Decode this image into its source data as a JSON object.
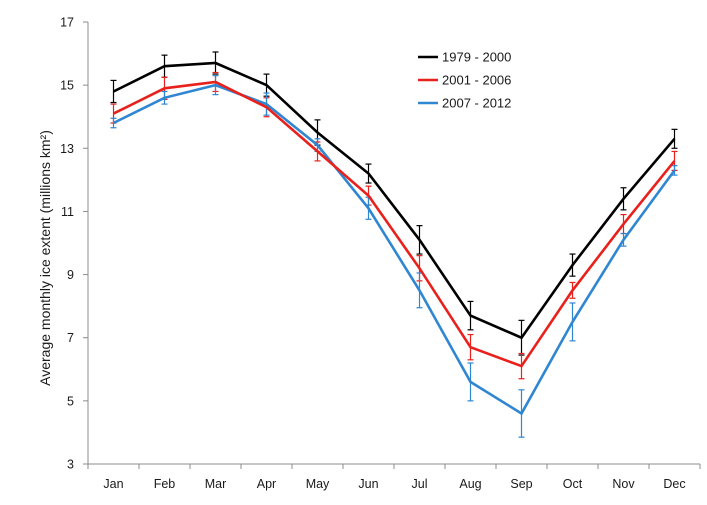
{
  "chart_data": {
    "type": "line",
    "title": "",
    "xlabel": "",
    "ylabel": "Average monthly ice extent (millions km²)",
    "categories": [
      "Jan",
      "Feb",
      "Mar",
      "Apr",
      "May",
      "Jun",
      "Jul",
      "Aug",
      "Sep",
      "Oct",
      "Nov",
      "Dec"
    ],
    "ylim": [
      3,
      17
    ],
    "yticks": [
      3,
      5,
      7,
      9,
      11,
      13,
      15,
      17
    ],
    "grid": false,
    "legend_position": "top-right",
    "series": [
      {
        "name": "1979 - 2000",
        "color": "#000000",
        "values": [
          14.8,
          15.6,
          15.7,
          15.0,
          13.5,
          12.2,
          10.1,
          7.7,
          7.0,
          9.3,
          11.4,
          13.3
        ],
        "error": [
          0.35,
          0.35,
          0.35,
          0.35,
          0.4,
          0.3,
          0.45,
          0.45,
          0.55,
          0.35,
          0.35,
          0.3
        ]
      },
      {
        "name": "2001 - 2006",
        "color": "#e8211c",
        "values": [
          14.1,
          14.9,
          15.1,
          14.3,
          12.9,
          11.5,
          9.2,
          6.7,
          6.1,
          8.5,
          10.6,
          12.6
        ],
        "error": [
          0.3,
          0.35,
          0.3,
          0.3,
          0.3,
          0.3,
          0.4,
          0.4,
          0.4,
          0.25,
          0.3,
          0.3
        ]
      },
      {
        "name": "2007 - 2012",
        "color": "#2f86d1",
        "values": [
          13.8,
          14.6,
          15.0,
          14.4,
          13.1,
          11.1,
          8.5,
          5.6,
          4.6,
          7.5,
          10.1,
          12.3
        ],
        "error": [
          0.15,
          0.2,
          0.3,
          0.35,
          0.2,
          0.35,
          0.55,
          0.6,
          0.75,
          0.6,
          0.2,
          0.15
        ]
      }
    ]
  }
}
